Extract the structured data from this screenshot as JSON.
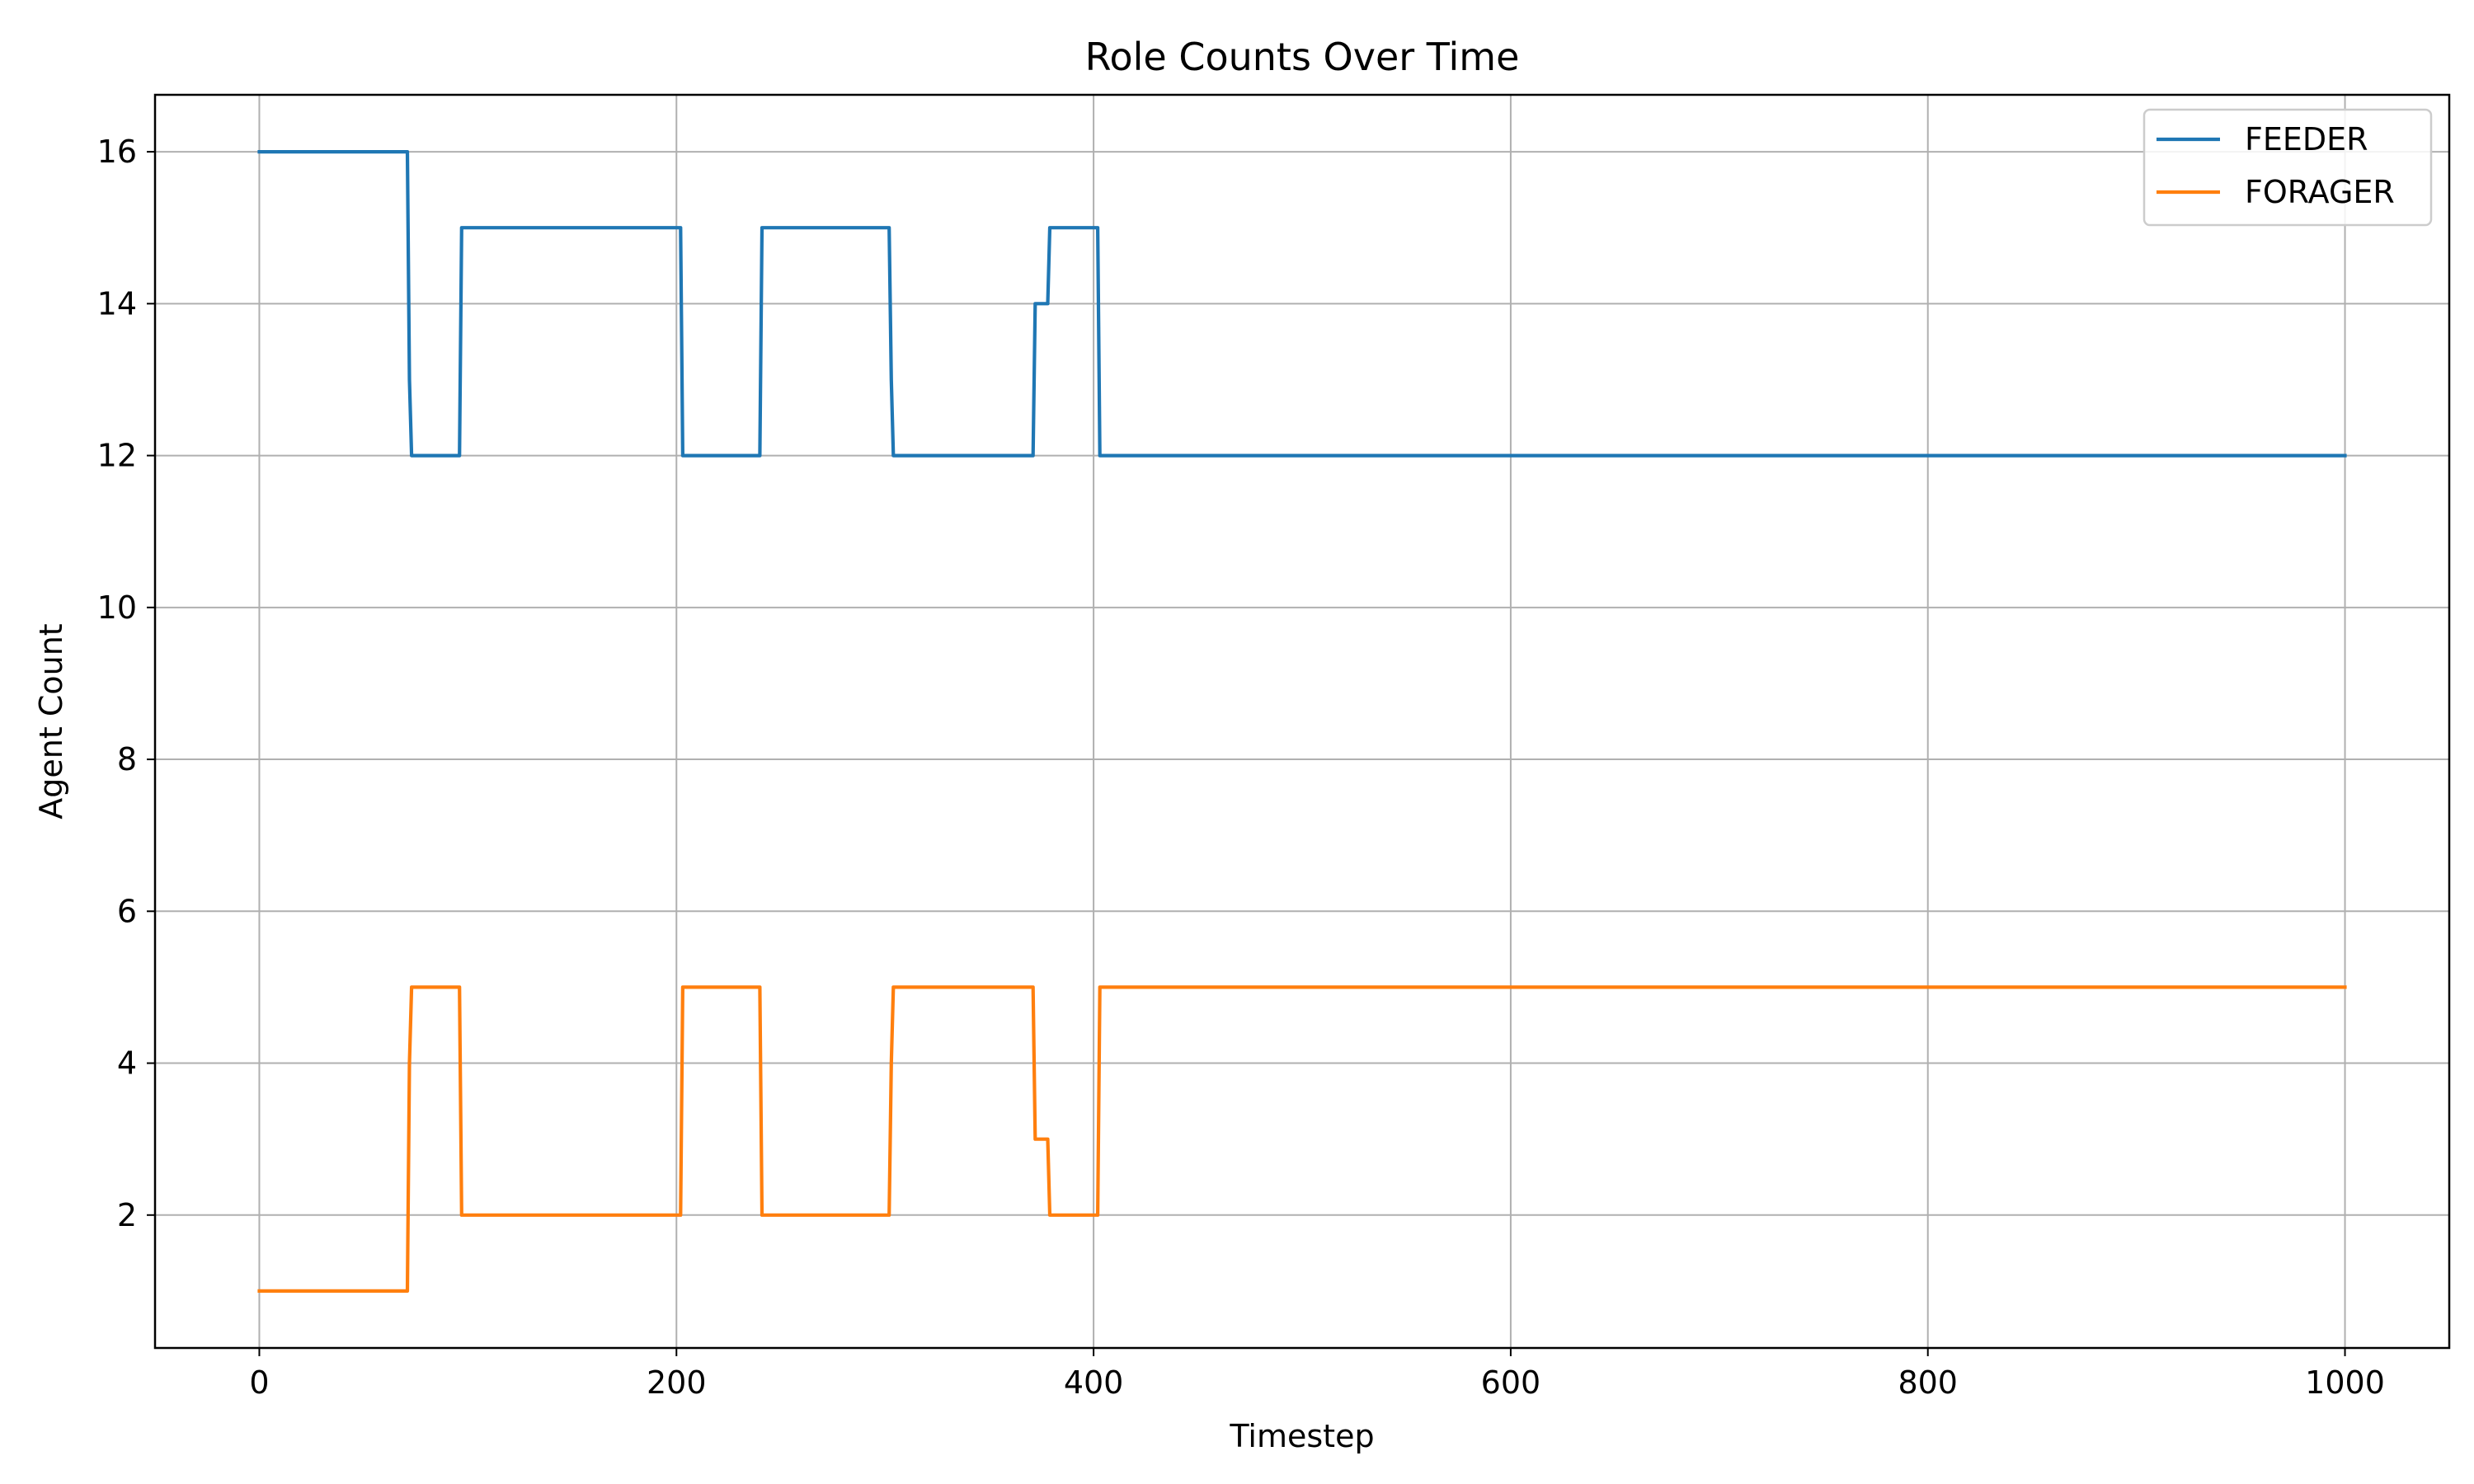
{
  "chart_data": {
    "type": "line",
    "title": "Role Counts Over Time",
    "xlabel": "Timestep",
    "ylabel": "Agent Count",
    "xlim": [
      -50,
      1050
    ],
    "ylim": [
      0.25,
      16.75
    ],
    "xticks": [
      0,
      200,
      400,
      600,
      800,
      1000
    ],
    "yticks": [
      2,
      4,
      6,
      8,
      10,
      12,
      14,
      16
    ],
    "grid": true,
    "legend_position": "top-right",
    "series": [
      {
        "name": "FEEDER",
        "color": "#1f77b4",
        "points": [
          [
            0,
            16
          ],
          [
            71,
            16
          ],
          [
            72,
            13
          ],
          [
            73,
            12
          ],
          [
            96,
            12
          ],
          [
            97,
            15
          ],
          [
            202,
            15
          ],
          [
            203,
            12
          ],
          [
            240,
            12
          ],
          [
            241,
            15
          ],
          [
            302,
            15
          ],
          [
            303,
            13
          ],
          [
            304,
            12
          ],
          [
            371,
            12
          ],
          [
            372,
            14
          ],
          [
            378,
            14
          ],
          [
            379,
            15
          ],
          [
            402,
            15
          ],
          [
            403,
            12
          ],
          [
            1000,
            12
          ]
        ]
      },
      {
        "name": "FORAGER",
        "color": "#ff7f0e",
        "points": [
          [
            0,
            1
          ],
          [
            71,
            1
          ],
          [
            72,
            4
          ],
          [
            73,
            5
          ],
          [
            96,
            5
          ],
          [
            97,
            2
          ],
          [
            202,
            2
          ],
          [
            203,
            5
          ],
          [
            240,
            5
          ],
          [
            241,
            2
          ],
          [
            302,
            2
          ],
          [
            303,
            4
          ],
          [
            304,
            5
          ],
          [
            371,
            5
          ],
          [
            372,
            3
          ],
          [
            378,
            3
          ],
          [
            379,
            2
          ],
          [
            402,
            2
          ],
          [
            403,
            5
          ],
          [
            1000,
            5
          ]
        ]
      }
    ]
  }
}
